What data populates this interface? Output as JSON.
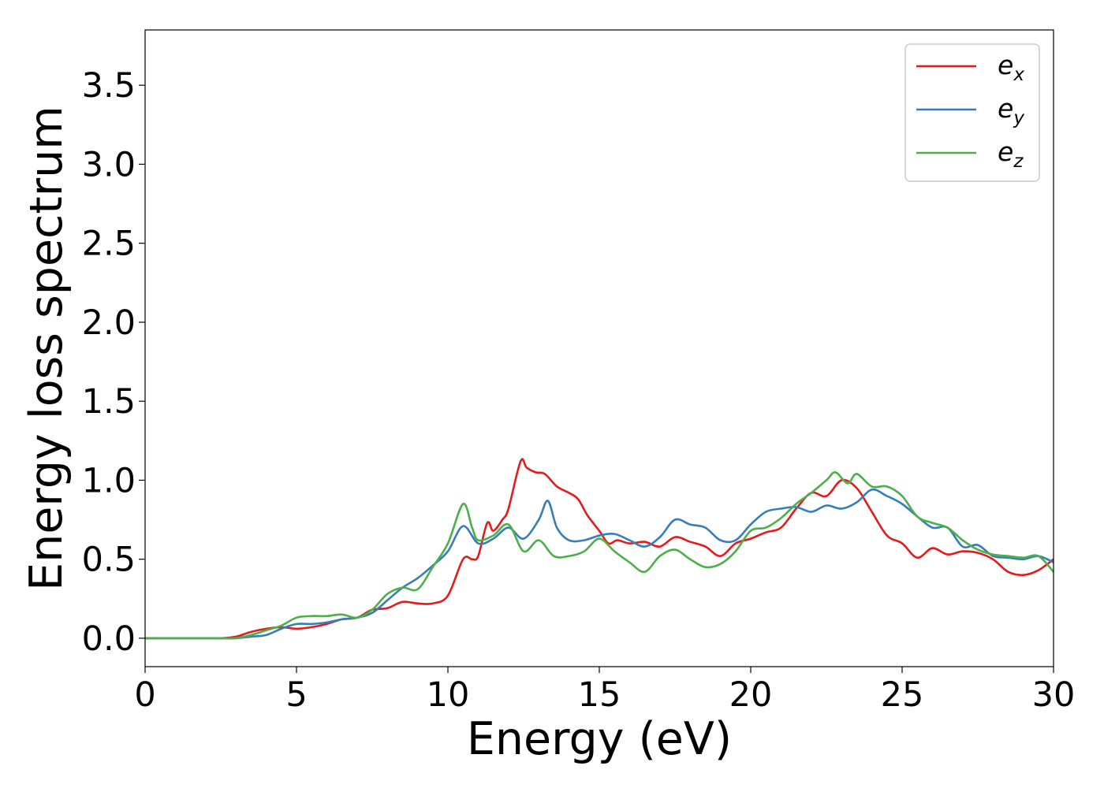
{
  "chart_data": {
    "type": "line",
    "title": "",
    "xlabel": "Energy (eV)",
    "ylabel": "Energy loss spectrum",
    "xlim": [
      0,
      30
    ],
    "ylim": [
      -0.18,
      3.85
    ],
    "xticks": [
      "0",
      "5",
      "10",
      "15",
      "20",
      "25",
      "30"
    ],
    "yticks": [
      "0.0",
      "0.5",
      "1.0",
      "1.5",
      "2.0",
      "2.5",
      "3.0",
      "3.5"
    ],
    "grid": false,
    "legend_position": "top-right",
    "series": [
      {
        "name": "e_x",
        "label_base": "e",
        "label_sub": "x",
        "color": "#e41a1c",
        "x": [
          0,
          1,
          2,
          2.5,
          3,
          3.5,
          4,
          4.5,
          5,
          5.5,
          6,
          6.5,
          7,
          7.5,
          8,
          8.5,
          9,
          9.5,
          10,
          10.5,
          10.8,
          11,
          11.3,
          11.5,
          11.8,
          12,
          12.4,
          12.6,
          12.9,
          13.2,
          13.6,
          14,
          14.3,
          14.6,
          15,
          15.3,
          15.6,
          16,
          16.5,
          17,
          17.5,
          18,
          18.5,
          19,
          19.5,
          20,
          20.5,
          21,
          21.5,
          22,
          22.5,
          23,
          23.5,
          24,
          24.5,
          25,
          25.5,
          26,
          26.5,
          27,
          27.5,
          28,
          28.5,
          29,
          29.5,
          30
        ],
        "y": [
          0,
          0,
          0,
          0,
          0.01,
          0.04,
          0.06,
          0.07,
          0.06,
          0.07,
          0.09,
          0.12,
          0.13,
          0.18,
          0.19,
          0.23,
          0.22,
          0.22,
          0.27,
          0.5,
          0.5,
          0.52,
          0.73,
          0.68,
          0.75,
          0.82,
          1.12,
          1.08,
          1.05,
          1.04,
          0.96,
          0.92,
          0.88,
          0.78,
          0.68,
          0.6,
          0.62,
          0.6,
          0.61,
          0.58,
          0.64,
          0.61,
          0.58,
          0.52,
          0.6,
          0.63,
          0.67,
          0.7,
          0.82,
          0.92,
          0.9,
          1.0,
          0.95,
          0.8,
          0.65,
          0.6,
          0.51,
          0.57,
          0.53,
          0.55,
          0.54,
          0.5,
          0.42,
          0.4,
          0.43,
          0.5
        ]
      },
      {
        "name": "e_y",
        "label_base": "e",
        "label_sub": "y",
        "color": "#377eb8",
        "x": [
          0,
          1,
          2,
          2.5,
          3,
          3.5,
          4,
          4.5,
          5,
          5.5,
          6,
          6.5,
          7,
          7.5,
          8,
          8.5,
          9,
          9.5,
          10,
          10.5,
          11,
          11.5,
          12,
          12.5,
          13,
          13.3,
          13.6,
          14,
          14.5,
          15,
          15.5,
          16,
          16.5,
          17,
          17.5,
          18,
          18.5,
          19,
          19.5,
          20,
          20.5,
          21,
          21.5,
          22,
          22.5,
          23,
          23.5,
          24,
          24.5,
          25,
          25.5,
          26,
          26.5,
          27,
          27.5,
          28,
          28.5,
          29,
          29.5,
          30
        ],
        "y": [
          0,
          0,
          0,
          0,
          0,
          0.01,
          0.02,
          0.06,
          0.09,
          0.09,
          0.1,
          0.12,
          0.13,
          0.16,
          0.24,
          0.32,
          0.38,
          0.46,
          0.55,
          0.71,
          0.6,
          0.63,
          0.7,
          0.63,
          0.75,
          0.87,
          0.7,
          0.62,
          0.62,
          0.65,
          0.66,
          0.62,
          0.58,
          0.64,
          0.75,
          0.72,
          0.7,
          0.62,
          0.62,
          0.72,
          0.8,
          0.82,
          0.83,
          0.8,
          0.84,
          0.82,
          0.86,
          0.94,
          0.9,
          0.85,
          0.77,
          0.7,
          0.7,
          0.58,
          0.59,
          0.52,
          0.51,
          0.5,
          0.52,
          0.48
        ]
      },
      {
        "name": "e_z",
        "label_base": "e",
        "label_sub": "z",
        "color": "#4daf4a",
        "x": [
          0,
          1,
          2,
          2.5,
          3,
          3.5,
          4,
          4.5,
          5,
          5.5,
          6,
          6.5,
          7,
          7.5,
          8,
          8.5,
          9,
          9.5,
          10,
          10.5,
          10.8,
          11,
          11.5,
          12,
          12.5,
          13,
          13.5,
          14,
          14.5,
          15,
          15.5,
          16,
          16.5,
          17,
          17.5,
          18,
          18.5,
          19,
          19.5,
          20,
          20.5,
          21,
          21.5,
          22,
          22.5,
          22.8,
          23.2,
          23.5,
          24,
          24.5,
          25,
          25.5,
          26,
          26.5,
          27,
          27.5,
          28,
          28.5,
          29,
          29.5,
          30
        ],
        "y": [
          0,
          0,
          0,
          0,
          0,
          0.02,
          0.05,
          0.08,
          0.13,
          0.14,
          0.14,
          0.15,
          0.13,
          0.18,
          0.28,
          0.32,
          0.31,
          0.45,
          0.6,
          0.85,
          0.7,
          0.62,
          0.65,
          0.72,
          0.55,
          0.62,
          0.52,
          0.52,
          0.55,
          0.63,
          0.55,
          0.48,
          0.42,
          0.52,
          0.56,
          0.5,
          0.45,
          0.47,
          0.55,
          0.68,
          0.7,
          0.76,
          0.85,
          0.92,
          1.0,
          1.05,
          0.98,
          1.04,
          0.96,
          0.96,
          0.9,
          0.77,
          0.73,
          0.7,
          0.62,
          0.56,
          0.53,
          0.52,
          0.51,
          0.52,
          0.42
        ]
      }
    ]
  }
}
